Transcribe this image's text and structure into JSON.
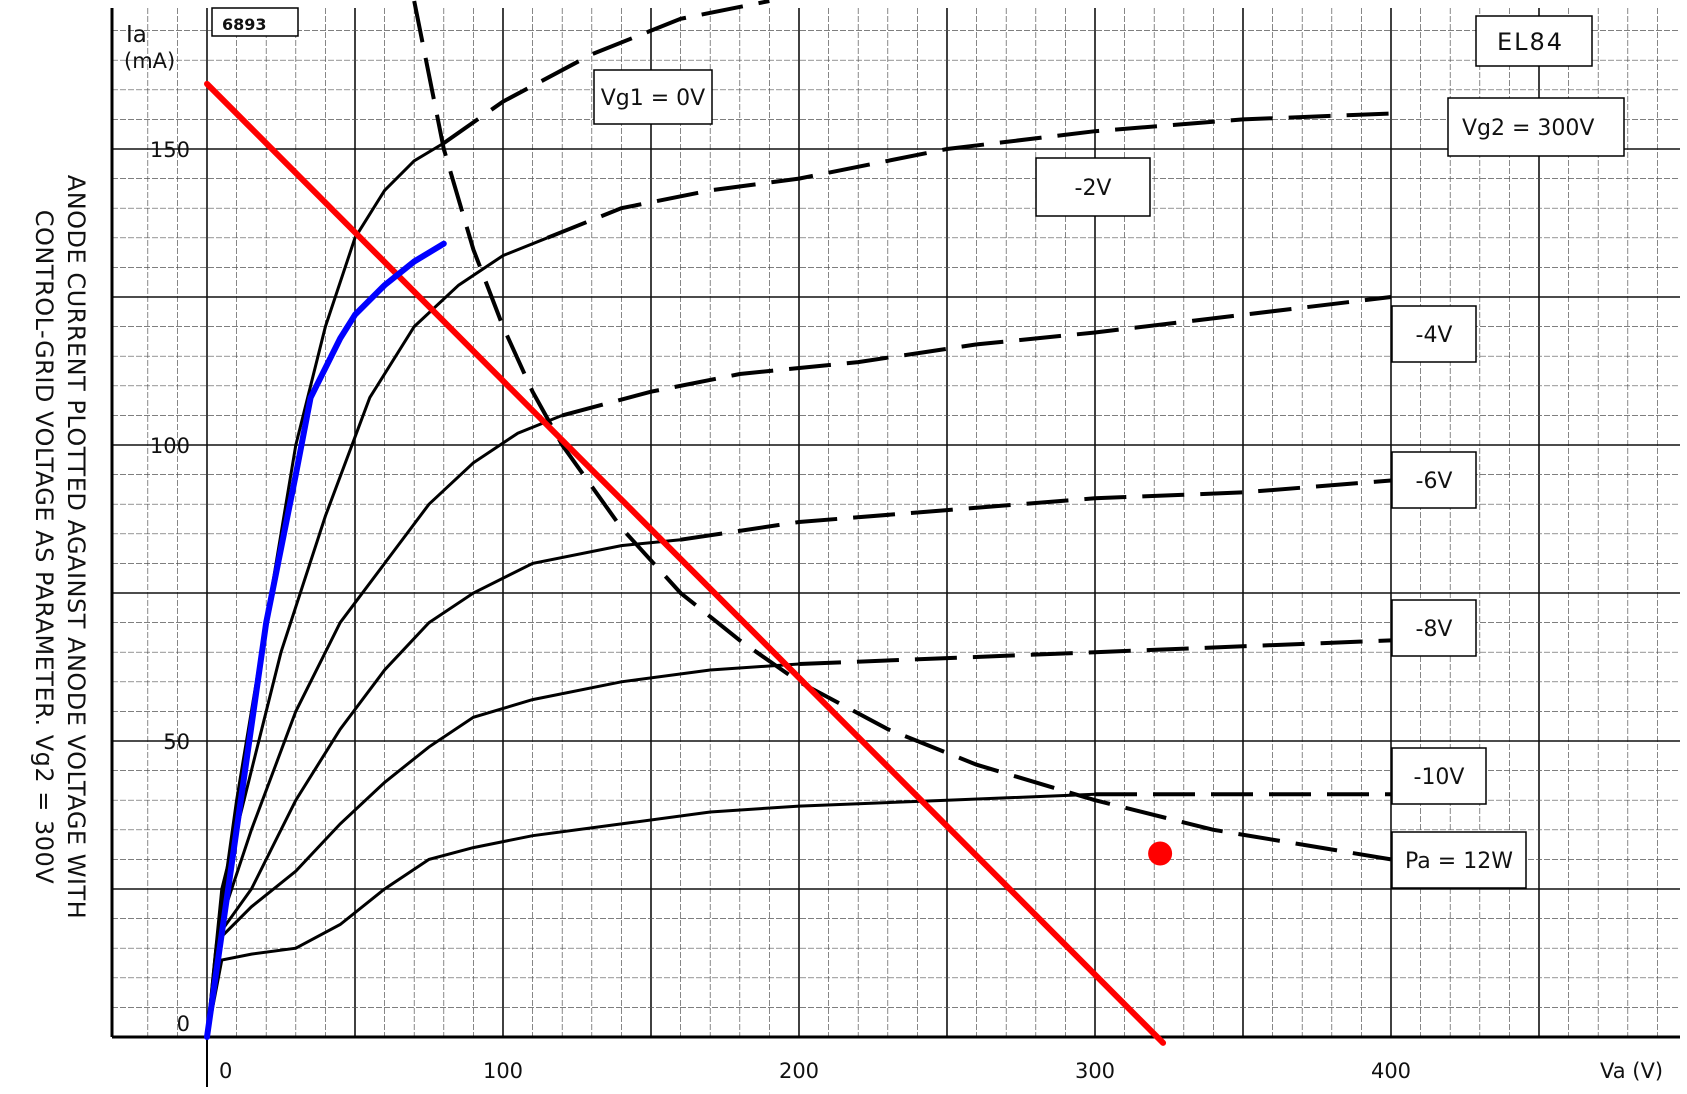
{
  "chart_data": {
    "type": "line",
    "figure_id": "6893",
    "tube": "EL84",
    "caption_line1": "ANODE CURRENT PLOTTED AGAINST ANODE VOLTAGE WITH",
    "caption_line2": "CONTROL-GRID VOLTAGE AS PARAMETER.  Vg2 = 300V",
    "ylabel_top": "Ia",
    "ylabel_unit": "(mA)",
    "xlabel": "Va  (V)",
    "xlim": [
      0,
      500
    ],
    "ylim": [
      0,
      175
    ],
    "x_ticks": [
      0,
      100,
      200,
      300,
      400
    ],
    "y_ticks": [
      0,
      50,
      100,
      150
    ],
    "grid": true,
    "vg2_label": "Vg2 = 300V",
    "series": [
      {
        "name": "Vg1 = 0V",
        "points": [
          [
            0,
            0
          ],
          [
            3,
            15
          ],
          [
            10,
            40
          ],
          [
            20,
            70
          ],
          [
            30,
            100
          ],
          [
            40,
            120
          ],
          [
            50,
            135
          ],
          [
            60,
            143
          ],
          [
            70,
            148
          ],
          [
            80,
            151
          ],
          [
            100,
            158
          ],
          [
            130,
            166
          ],
          [
            160,
            172
          ],
          [
            190,
            175
          ]
        ]
      },
      {
        "name": "-2V",
        "points": [
          [
            0,
            0
          ],
          [
            5,
            25
          ],
          [
            15,
            45
          ],
          [
            25,
            65
          ],
          [
            40,
            88
          ],
          [
            55,
            108
          ],
          [
            70,
            120
          ],
          [
            85,
            127
          ],
          [
            100,
            132
          ],
          [
            115,
            135
          ],
          [
            140,
            140
          ],
          [
            170,
            143
          ],
          [
            200,
            145
          ],
          [
            250,
            150
          ],
          [
            300,
            153
          ],
          [
            350,
            155
          ],
          [
            400,
            156
          ]
        ]
      },
      {
        "name": "-4V",
        "points": [
          [
            0,
            0
          ],
          [
            5,
            20
          ],
          [
            15,
            35
          ],
          [
            30,
            55
          ],
          [
            45,
            70
          ],
          [
            60,
            80
          ],
          [
            75,
            90
          ],
          [
            90,
            97
          ],
          [
            105,
            102
          ],
          [
            120,
            105
          ],
          [
            150,
            109
          ],
          [
            180,
            112
          ],
          [
            220,
            114
          ],
          [
            260,
            117
          ],
          [
            300,
            119
          ],
          [
            350,
            122
          ],
          [
            400,
            125
          ]
        ]
      },
      {
        "name": "-6V",
        "points": [
          [
            0,
            0
          ],
          [
            5,
            18
          ],
          [
            15,
            25
          ],
          [
            30,
            40
          ],
          [
            45,
            52
          ],
          [
            60,
            62
          ],
          [
            75,
            70
          ],
          [
            90,
            75
          ],
          [
            110,
            80
          ],
          [
            140,
            83
          ],
          [
            160,
            84
          ],
          [
            200,
            87
          ],
          [
            250,
            89
          ],
          [
            300,
            91
          ],
          [
            350,
            92
          ],
          [
            400,
            94
          ]
        ]
      },
      {
        "name": "-8V",
        "points": [
          [
            0,
            0
          ],
          [
            5,
            17
          ],
          [
            15,
            22
          ],
          [
            30,
            28
          ],
          [
            45,
            36
          ],
          [
            60,
            43
          ],
          [
            75,
            49
          ],
          [
            90,
            54
          ],
          [
            110,
            57
          ],
          [
            140,
            60
          ],
          [
            170,
            62
          ],
          [
            200,
            63
          ],
          [
            250,
            64
          ],
          [
            300,
            65
          ],
          [
            350,
            66
          ],
          [
            400,
            67
          ]
        ]
      },
      {
        "name": "-10V",
        "points": [
          [
            0,
            0
          ],
          [
            5,
            13
          ],
          [
            15,
            14
          ],
          [
            30,
            15
          ],
          [
            45,
            19
          ],
          [
            60,
            25
          ],
          [
            75,
            30
          ],
          [
            90,
            32
          ],
          [
            110,
            34
          ],
          [
            140,
            36
          ],
          [
            170,
            38
          ],
          [
            200,
            39
          ],
          [
            250,
            40
          ],
          [
            300,
            41
          ],
          [
            350,
            41
          ],
          [
            400,
            41
          ]
        ]
      },
      {
        "name": "Pa = 12W",
        "points": [
          [
            70,
            175
          ],
          [
            80,
            150
          ],
          [
            90,
            133
          ],
          [
            100,
            120
          ],
          [
            110,
            109
          ],
          [
            120,
            100
          ],
          [
            140,
            86
          ],
          [
            160,
            75
          ],
          [
            180,
            67
          ],
          [
            200,
            60
          ],
          [
            230,
            52
          ],
          [
            260,
            46
          ],
          [
            300,
            40
          ],
          [
            340,
            35
          ],
          [
            400,
            30
          ]
        ]
      }
    ],
    "overlays": {
      "load_line": {
        "points": [
          [
            0,
            161
          ],
          [
            323,
            -1
          ]
        ],
        "color": "#ff0000"
      },
      "trace": {
        "points": [
          [
            0,
            0
          ],
          [
            10,
            35
          ],
          [
            20,
            70
          ],
          [
            30,
            95
          ],
          [
            35,
            108
          ],
          [
            45,
            118
          ],
          [
            50,
            122
          ],
          [
            60,
            127
          ],
          [
            70,
            131
          ],
          [
            80,
            134
          ]
        ],
        "color": "#0000ff"
      },
      "operating_point": {
        "x": 322,
        "y": 31,
        "color": "#ff0000"
      }
    }
  }
}
